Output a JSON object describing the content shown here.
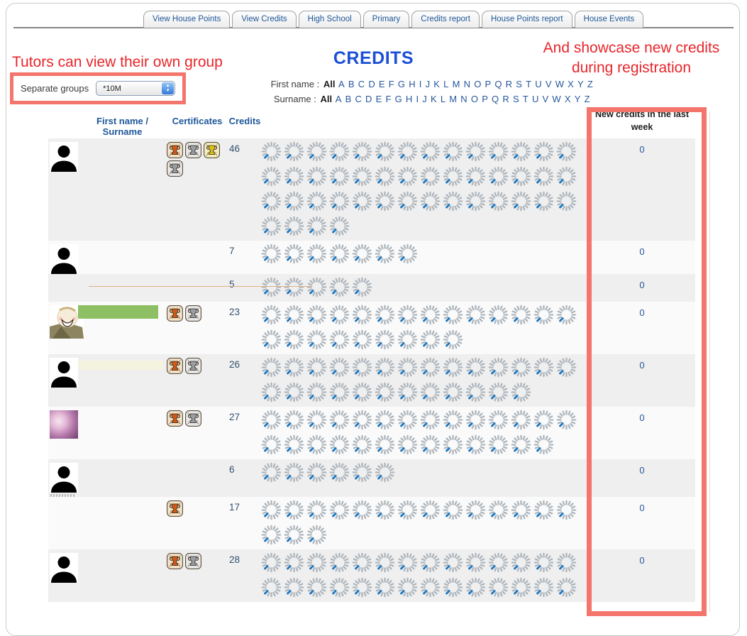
{
  "tabs": [
    "View House Points",
    "View Credits",
    "High School",
    "Primary",
    "Credits report",
    "House Points report",
    "House Events"
  ],
  "annotations": {
    "left": "Tutors can view their own group",
    "right_line1": "And showcase new credits",
    "right_line2": "during registration"
  },
  "groups": {
    "label": "Separate groups",
    "selected": "*10M"
  },
  "header": {
    "title": "CREDITS",
    "first_name_label": "First name :",
    "surname_label": "Surname :",
    "all_label": "All",
    "letters": [
      "A",
      "B",
      "C",
      "D",
      "E",
      "F",
      "G",
      "H",
      "I",
      "J",
      "K",
      "L",
      "M",
      "N",
      "O",
      "P",
      "Q",
      "R",
      "S",
      "T",
      "U",
      "V",
      "W",
      "X",
      "Y",
      "Z"
    ]
  },
  "table": {
    "columns": {
      "name": "First name / Surname",
      "certificates": "Certificates",
      "credits": "Credits",
      "new_credits": "New credits in the last week"
    },
    "rows": [
      {
        "avatar": "silhouette",
        "name_marker": "none",
        "certificates": [
          "bronze",
          "silver",
          "gold",
          "silver"
        ],
        "credits": 46,
        "new_credits": 0
      },
      {
        "avatar": "silhouette",
        "name_marker": "none",
        "certificates": [],
        "credits": 7,
        "new_credits": 0
      },
      {
        "avatar": "none",
        "name_marker": "orange-line",
        "certificates": [],
        "credits": 5,
        "new_credits": 0
      },
      {
        "avatar": "cartoon",
        "name_marker": "green-bar",
        "certificates": [
          "bronze",
          "silver"
        ],
        "credits": 23,
        "new_credits": 0
      },
      {
        "avatar": "silhouette",
        "name_marker": "pale-bar",
        "certificates": [
          "bronze",
          "silver"
        ],
        "credits": 26,
        "new_credits": 0
      },
      {
        "avatar": "rose",
        "name_marker": "none",
        "certificates": [
          "bronze",
          "silver"
        ],
        "credits": 27,
        "new_credits": 0
      },
      {
        "avatar": "silhouette-caption",
        "name_marker": "none",
        "certificates": [],
        "credits": 6,
        "new_credits": 0
      },
      {
        "avatar": "none",
        "name_marker": "none",
        "certificates": [
          "bronze"
        ],
        "credits": 17,
        "new_credits": 0
      },
      {
        "avatar": "silhouette",
        "name_marker": "none",
        "certificates": [
          "bronze",
          "silver"
        ],
        "credits": 28,
        "new_credits": 0
      }
    ]
  },
  "colors": {
    "accent_blue": "#1e5799",
    "title_blue": "#1b4fd6",
    "annotation_red": "#e8262b",
    "highlight_border_red": "#f3756c",
    "spinner_gray": "#aeb6bd",
    "spinner_blue": "#1e78c0",
    "row_alt_gray": "#efefef",
    "row_light": "#fafafa",
    "green_bar": "#8cc063"
  }
}
